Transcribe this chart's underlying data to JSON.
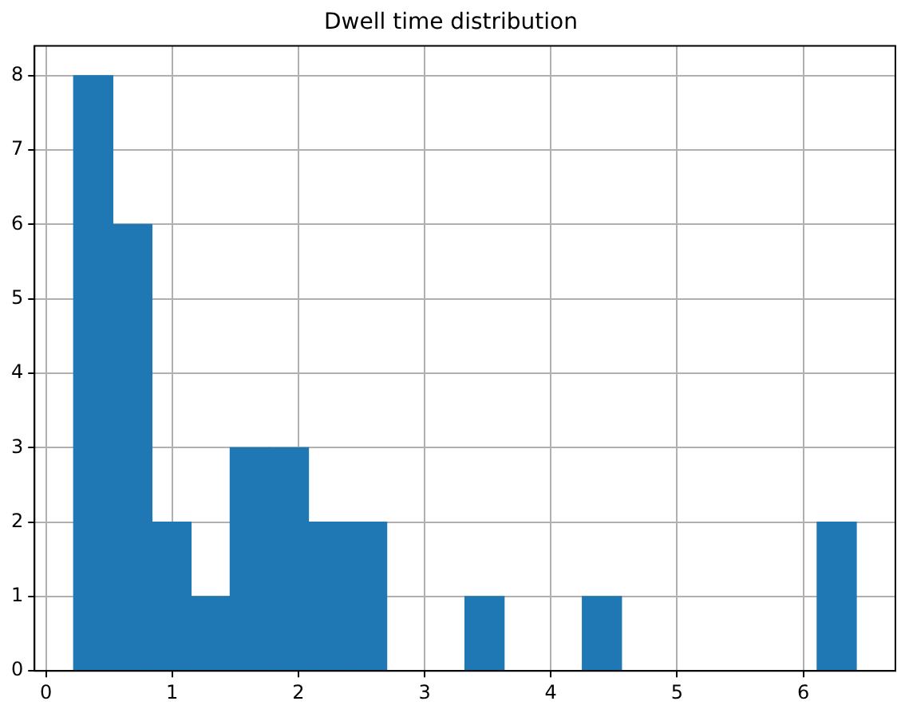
{
  "chart_data": {
    "type": "histogram",
    "title": "Dwell time distribution",
    "bins": [
      0.22,
      0.53,
      0.84,
      1.15,
      1.46,
      1.77,
      2.08,
      2.39,
      2.7,
      3.01,
      3.32,
      3.63,
      3.94,
      4.25,
      4.56,
      4.87,
      5.18,
      5.49,
      5.8,
      6.11,
      6.42
    ],
    "values": [
      8,
      6,
      2,
      1,
      3,
      3,
      2,
      2,
      0,
      0,
      1,
      0,
      0,
      1,
      0,
      0,
      0,
      0,
      0,
      2
    ],
    "color": "#1f77b4",
    "xlim": [
      -0.09,
      6.73
    ],
    "xticks": [
      0,
      1,
      2,
      3,
      4,
      5,
      6
    ],
    "ylim": [
      0,
      8.4
    ],
    "yticks": [
      0,
      1,
      2,
      3,
      4,
      5,
      6,
      7,
      8
    ],
    "grid": true
  }
}
